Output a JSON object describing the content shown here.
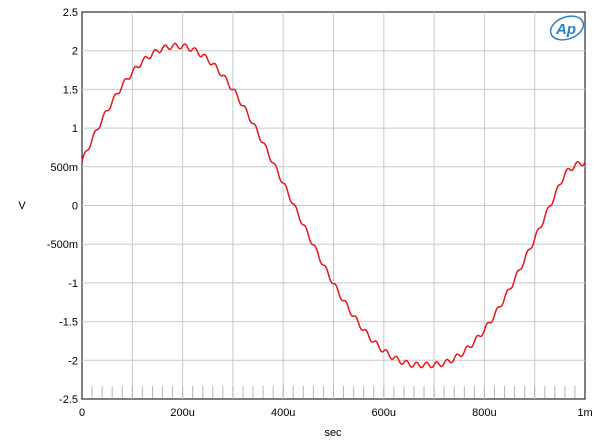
{
  "chart_data": {
    "type": "line",
    "title": "",
    "xlabel": "sec",
    "ylabel": "V",
    "xlim": [
      0,
      0.001
    ],
    "ylim": [
      -2.5,
      2.5
    ],
    "grid": true,
    "x_ticks": [
      {
        "value": 0,
        "label": "0"
      },
      {
        "value": 0.0002,
        "label": "200u"
      },
      {
        "value": 0.0004,
        "label": "400u"
      },
      {
        "value": 0.0006,
        "label": "600u"
      },
      {
        "value": 0.0008,
        "label": "800u"
      },
      {
        "value": 0.001,
        "label": "1m"
      }
    ],
    "y_ticks": [
      {
        "value": 2.5,
        "label": "2.5"
      },
      {
        "value": 2,
        "label": "2"
      },
      {
        "value": 1.5,
        "label": "1.5"
      },
      {
        "value": 1,
        "label": "1"
      },
      {
        "value": 0.5,
        "label": "500m"
      },
      {
        "value": 0,
        "label": "0"
      },
      {
        "value": -0.5,
        "label": "-500m"
      },
      {
        "value": -1,
        "label": "-1"
      },
      {
        "value": -1.5,
        "label": "-1.5"
      },
      {
        "value": -2,
        "label": "-2"
      },
      {
        "value": -2.5,
        "label": "-2.5"
      }
    ],
    "series": [
      {
        "color": "#e8141b",
        "x": [
          0,
          2e-05,
          4e-05,
          6e-05,
          8e-05,
          0.0001,
          0.00012,
          0.00014,
          0.00016,
          0.00018,
          0.0002,
          0.00022,
          0.00024,
          0.00026,
          0.00028,
          0.0003,
          0.00032,
          0.00034,
          0.00036,
          0.00038,
          0.0004,
          0.00042,
          0.00044,
          0.00046,
          0.00048,
          0.0005,
          0.00052,
          0.00054,
          0.00056,
          0.00058,
          0.0006,
          0.00062,
          0.00064,
          0.00066,
          0.00068,
          0.0007,
          0.00072,
          0.00074,
          0.00076,
          0.00078,
          0.0008,
          0.00082,
          0.00084,
          0.00086,
          0.00088,
          0.0009,
          0.00092,
          0.00094,
          0.00096,
          0.00098,
          0.001
        ],
        "y": [
          0.57,
          0.85,
          1.11,
          1.34,
          1.55,
          1.72,
          1.86,
          1.96,
          2.03,
          2.06,
          2.06,
          2.02,
          1.94,
          1.83,
          1.68,
          1.5,
          1.29,
          1.06,
          0.81,
          0.55,
          0.29,
          0.02,
          -0.25,
          -0.51,
          -0.77,
          -1.01,
          -1.23,
          -1.43,
          -1.61,
          -1.76,
          -1.88,
          -1.97,
          -2.03,
          -2.06,
          -2.06,
          -2.06,
          -2.04,
          -1.98,
          -1.89,
          -1.76,
          -1.61,
          -1.42,
          -1.2,
          -0.96,
          -0.7,
          -0.43,
          -0.15,
          0.13,
          0.41,
          0.52,
          0.56
        ],
        "ripple_amplitude_v": 0.035,
        "ripple_steps": 50
      }
    ],
    "bottom_marker_count": 50
  },
  "logo_text": "Ap"
}
